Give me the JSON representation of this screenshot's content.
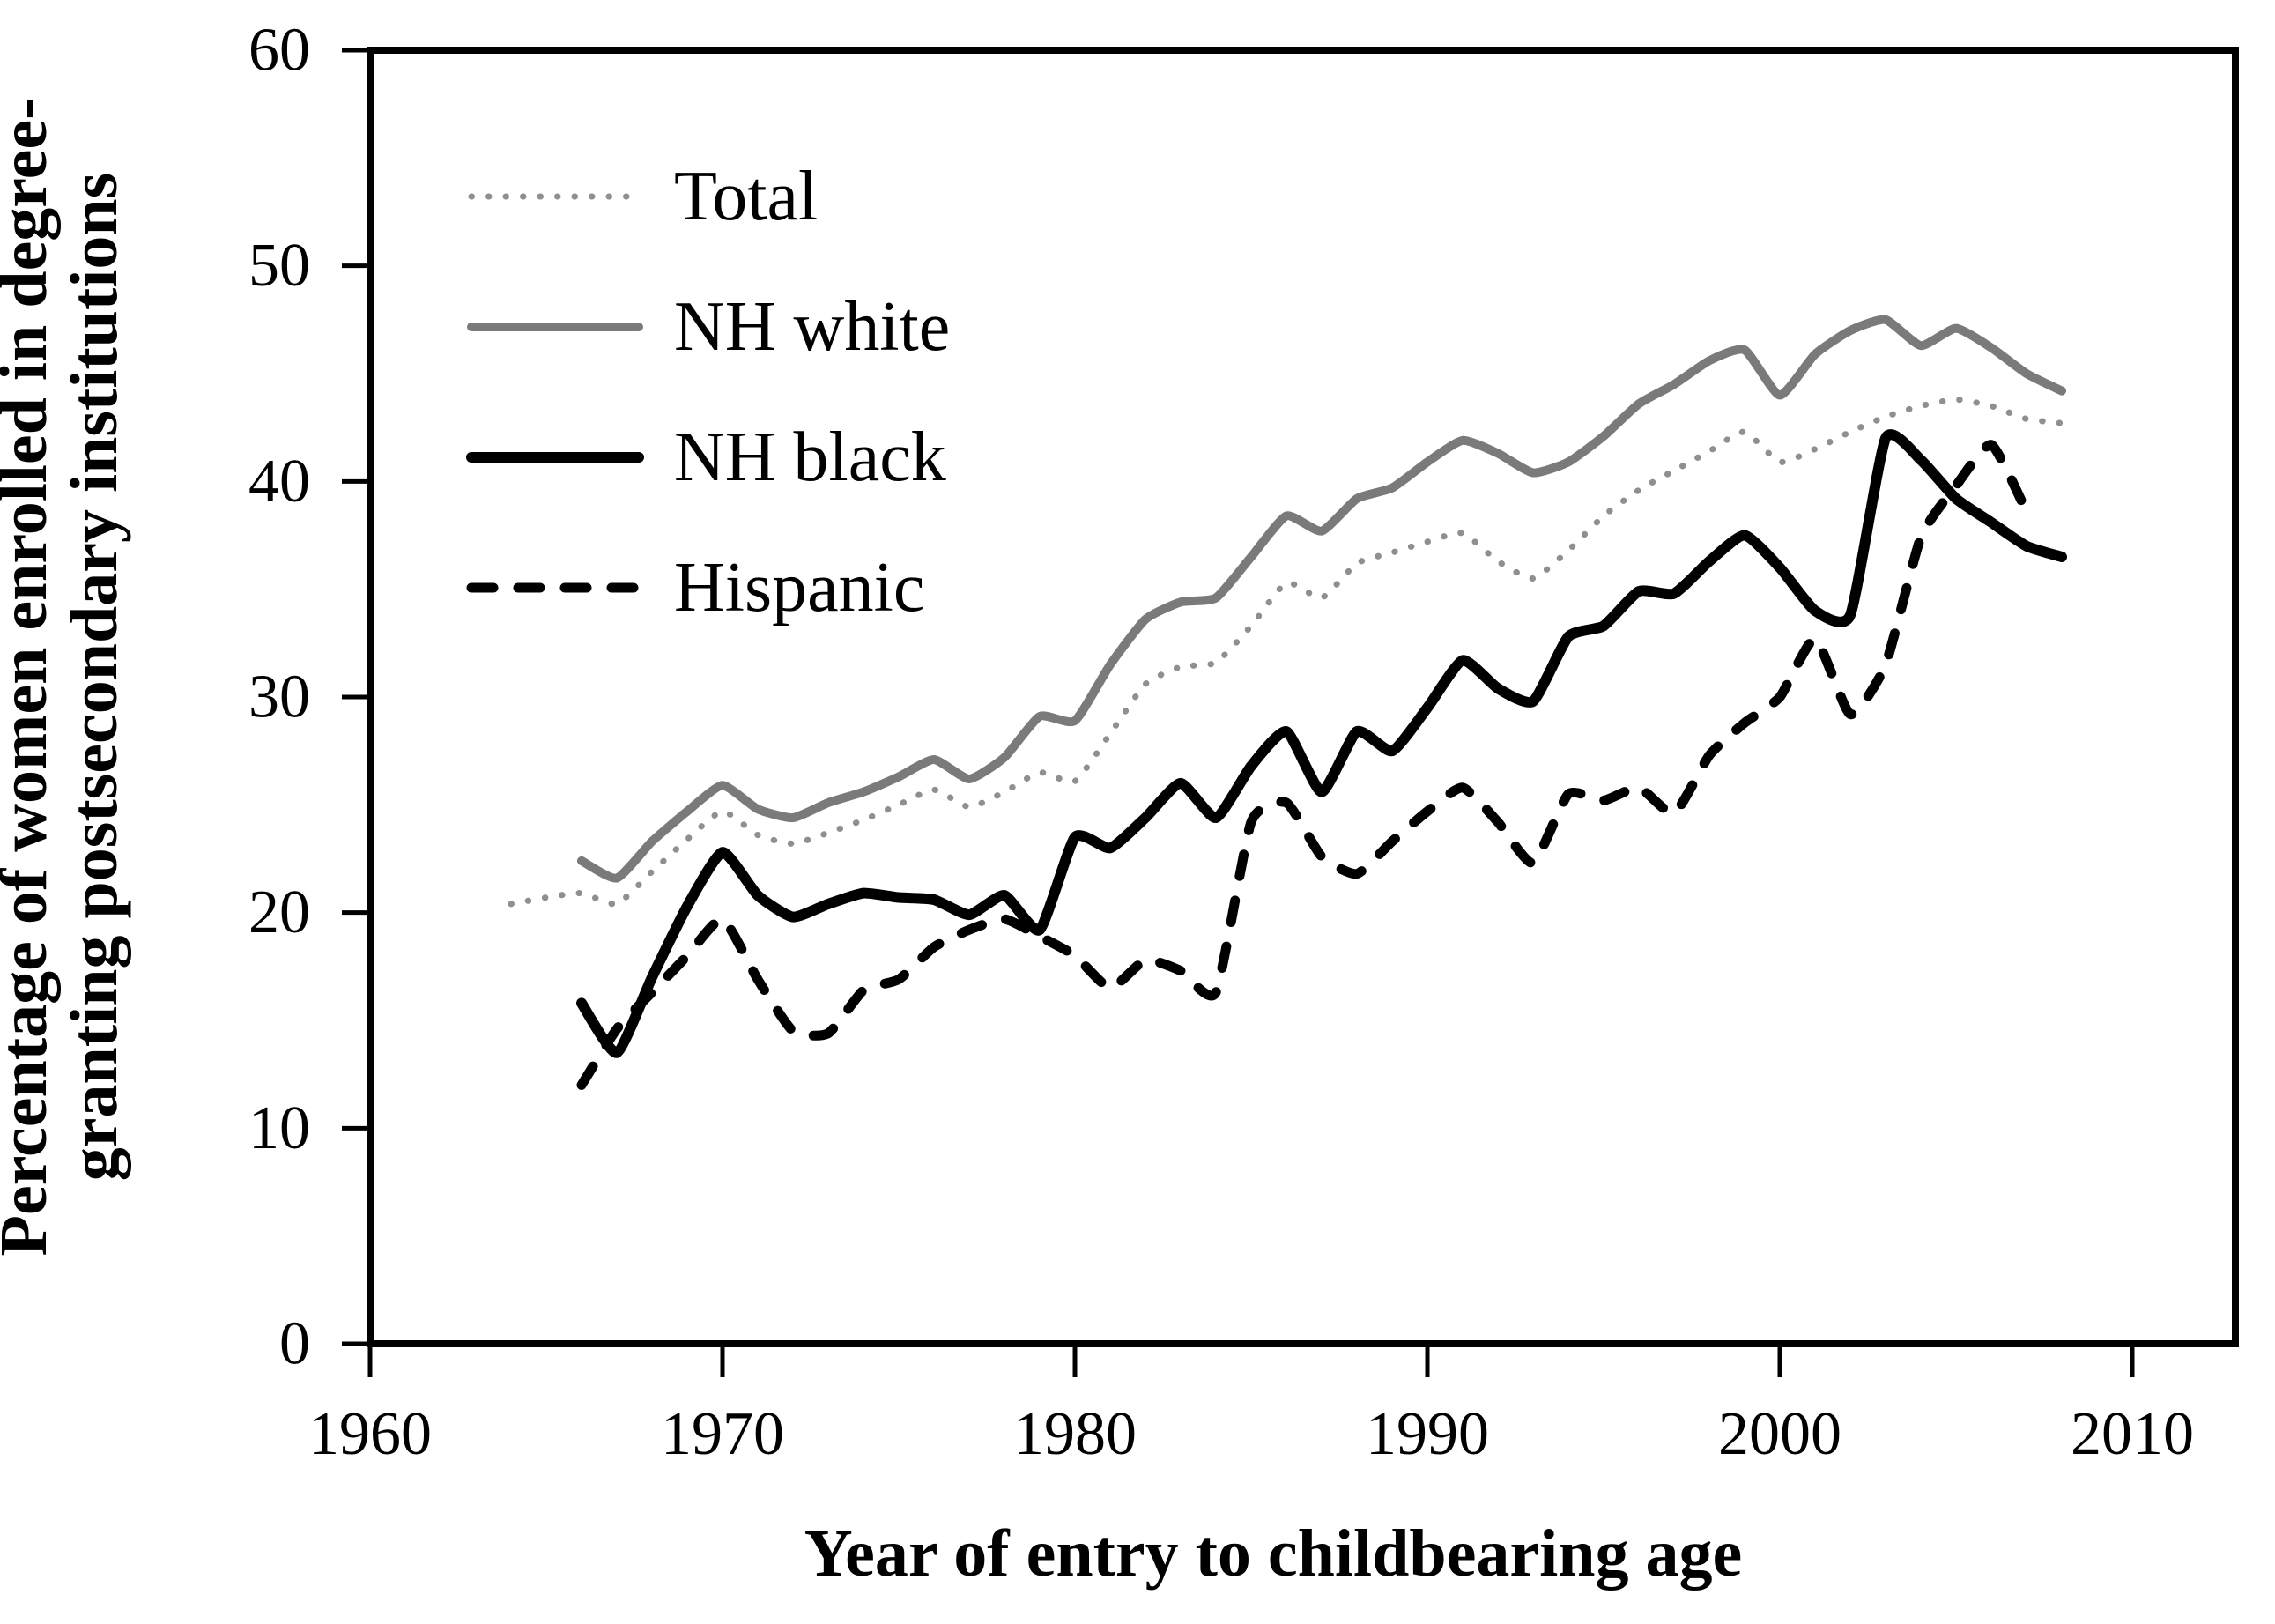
{
  "figure": {
    "background_color": "#ffffff",
    "y_axis_title_line1": "Percentage of women enrolled in degree-",
    "y_axis_title_line2": "granting postsecondary institutions",
    "x_axis_title": "Year of entry to childbearing age",
    "axis_color": "#000000"
  },
  "chart_data": {
    "type": "line",
    "title": "",
    "xlabel": "Year of entry to childbearing age",
    "ylabel": "Percentage of women enrolled in degree-granting postsecondary institutions",
    "xlim": [
      1960,
      2013
    ],
    "ylim": [
      0,
      60
    ],
    "x_ticks": [
      1960,
      1970,
      1980,
      1990,
      2000,
      2010
    ],
    "y_ticks": [
      0,
      10,
      20,
      30,
      40,
      50,
      60
    ],
    "grid": false,
    "legend_position": "upper-left-inside",
    "years": [
      1964,
      1965,
      1966,
      1967,
      1968,
      1969,
      1970,
      1971,
      1972,
      1973,
      1974,
      1975,
      1976,
      1977,
      1978,
      1979,
      1980,
      1981,
      1982,
      1983,
      1984,
      1985,
      1986,
      1987,
      1988,
      1989,
      1990,
      1991,
      1992,
      1993,
      1994,
      1995,
      1996,
      1997,
      1998,
      1999,
      2000,
      2001,
      2002,
      2003,
      2004,
      2005,
      2006,
      2007,
      2008
    ],
    "series": [
      {
        "name": "Total",
        "color": "#8f8f8f",
        "style": "dotted",
        "width": 7,
        "values": [
          20.4,
          20.7,
          20.9,
          20.4,
          21.9,
          23.4,
          24.7,
          23.6,
          23.2,
          23.7,
          24.3,
          25.0,
          25.7,
          24.9,
          25.6,
          26.5,
          26.1,
          28.3,
          30.6,
          31.4,
          31.6,
          33.3,
          35.3,
          34.6,
          36.2,
          36.7,
          37.2,
          37.6,
          36.3,
          35.5,
          36.8,
          38.4,
          39.6,
          40.5,
          41.4,
          42.3,
          40.9,
          41.5,
          42.3,
          43.0,
          43.5,
          43.8,
          43.5,
          42.9,
          42.7
        ]
      },
      {
        "name": "NH white",
        "color": "#7a7a7a",
        "style": "solid",
        "width": 10,
        "values": [
          null,
          null,
          22.4,
          21.6,
          23.3,
          24.7,
          25.9,
          24.8,
          24.4,
          25.1,
          25.6,
          26.3,
          27.1,
          26.2,
          27.2,
          29.1,
          28.9,
          31.5,
          33.6,
          34.4,
          34.6,
          36.5,
          38.4,
          37.7,
          39.2,
          39.7,
          40.9,
          41.9,
          41.3,
          40.4,
          40.9,
          42.1,
          43.6,
          44.5,
          45.6,
          46.1,
          44.0,
          45.9,
          47.0,
          47.5,
          46.3,
          47.1,
          46.2,
          45.0,
          44.2
        ]
      },
      {
        "name": "NH black",
        "color": "#000000",
        "style": "solid",
        "width": 12,
        "values": [
          null,
          null,
          15.8,
          13.5,
          17.0,
          20.3,
          22.8,
          20.8,
          19.8,
          20.4,
          20.9,
          20.7,
          20.6,
          19.9,
          20.8,
          19.2,
          23.5,
          23.0,
          24.4,
          26.0,
          24.4,
          26.8,
          28.4,
          25.6,
          28.4,
          27.5,
          29.5,
          31.7,
          30.4,
          29.8,
          32.8,
          33.3,
          34.9,
          34.8,
          36.3,
          37.5,
          36.0,
          34.0,
          33.8,
          42.0,
          41.0,
          39.2,
          38.1,
          37.0,
          36.5
        ]
      },
      {
        "name": "Hispanic",
        "color": "#000000",
        "style": "dashed",
        "width": 11,
        "values": [
          null,
          null,
          12.0,
          14.6,
          16.3,
          18.0,
          19.7,
          16.9,
          14.5,
          14.4,
          16.4,
          16.9,
          18.4,
          19.2,
          19.7,
          18.9,
          18.0,
          16.5,
          17.8,
          17.3,
          16.3,
          24.2,
          25.1,
          22.6,
          21.8,
          23.3,
          24.7,
          25.8,
          24.2,
          22.3,
          25.5,
          25.2,
          25.8,
          24.6,
          27.3,
          28.8,
          30.0,
          32.7,
          29.2,
          31.5,
          37.4,
          39.8,
          41.7,
          38.6,
          null
        ]
      }
    ]
  }
}
